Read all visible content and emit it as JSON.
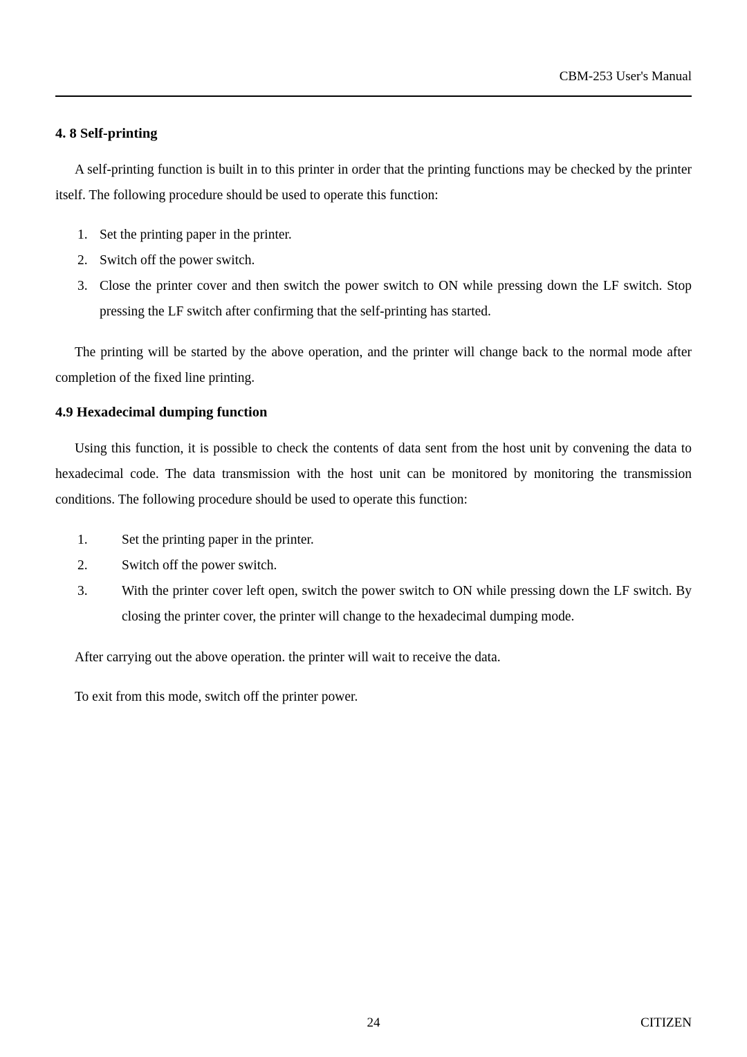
{
  "header": {
    "manual_title": "CBM-253 User's Manual"
  },
  "section_48": {
    "heading": "4. 8   Self-printing",
    "intro": "A self-printing function is built in to this printer in order that the printing functions may be checked by the printer itself. The following procedure should be used to operate this function:",
    "steps": [
      {
        "n": "1.",
        "text": "Set the printing paper in the printer."
      },
      {
        "n": "2.",
        "text": "Switch off the power switch."
      },
      {
        "n": "3.",
        "text": "Close the printer cover and then switch the power switch to ON while pressing down the LF switch. Stop pressing the LF switch after confirming that the self-printing has started."
      }
    ],
    "outro": "The printing will be started by the above operation, and the printer will change back to the normal mode after completion of the fixed line printing."
  },
  "section_49": {
    "heading": "4.9    Hexadecimal dumping function",
    "intro": "Using this function, it is possible to check the contents of data sent from the host unit by convening the data to hexadecimal code. The data transmission with the host unit can be monitored by monitoring the transmission conditions. The following procedure should be used to operate this function:",
    "steps": [
      {
        "n": "1.",
        "text": "Set the printing paper in the printer."
      },
      {
        "n": "2.",
        "text": "Switch off the power switch."
      },
      {
        "n": "3.",
        "text": "With the printer cover left open, switch the power switch to ON while pressing down the LF switch. By closing the printer cover, the printer will change to the hexadecimal dumping mode."
      }
    ],
    "line1": "After carrying out the above operation. the printer will wait to receive the data.",
    "line2": "To exit from this mode, switch off the printer power."
  },
  "footer": {
    "page_number": "24",
    "brand": "CITIZEN"
  }
}
